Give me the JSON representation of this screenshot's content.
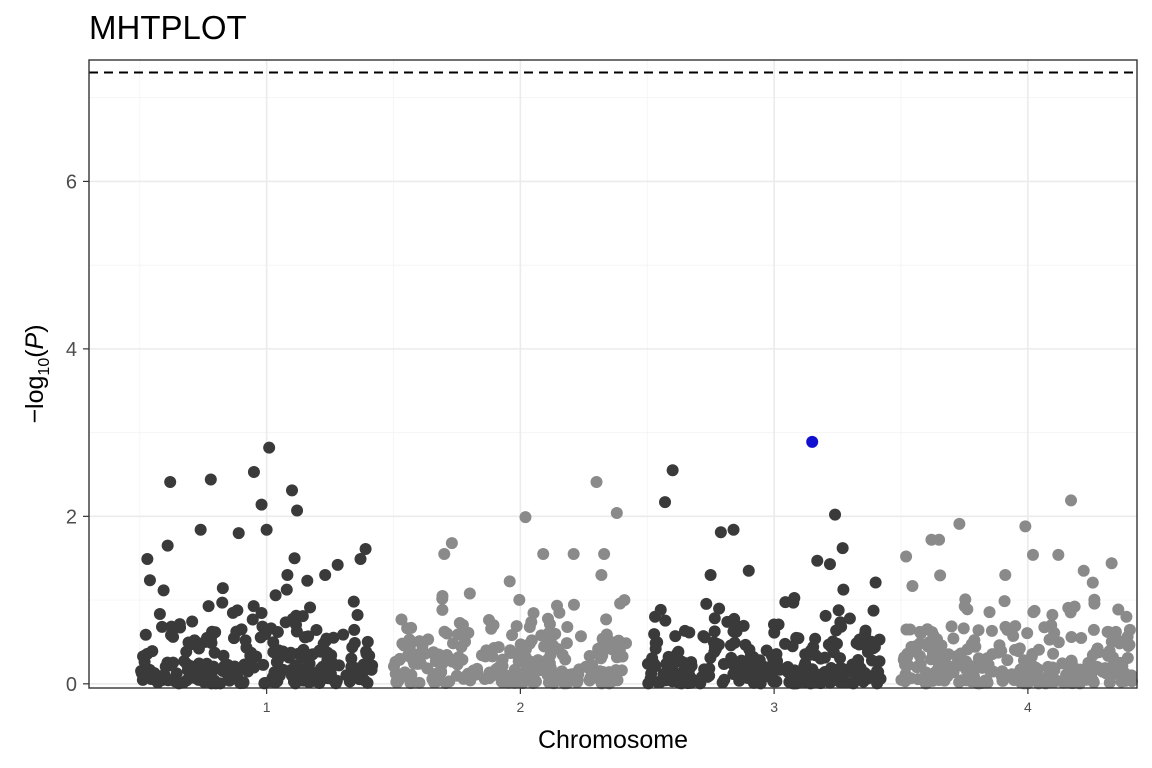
{
  "chart_data": {
    "type": "scatter",
    "title": "MHTPLOT",
    "xlabel": "Chromosome",
    "ylabel": {
      "prefix": "−log",
      "sub": "10",
      "open": "(",
      "var": "P",
      "close": ")"
    },
    "yticks": [
      0,
      2,
      4,
      6
    ],
    "ylim": [
      -0.05,
      7.45
    ],
    "threshold": 7.3,
    "grid": true,
    "chromosomes": [
      {
        "label": "1",
        "center": 1,
        "start": 0.5,
        "end": 1.42,
        "color": "#3a3a3a"
      },
      {
        "label": "2",
        "center": 2,
        "start": 1.5,
        "end": 2.42,
        "color": "#8a8a8a"
      },
      {
        "label": "3",
        "center": 3,
        "start": 2.5,
        "end": 3.42,
        "color": "#3a3a3a"
      },
      {
        "label": "4",
        "center": 4,
        "start": 3.5,
        "end": 4.42,
        "color": "#8a8a8a"
      }
    ],
    "highlight": {
      "x": 3.15,
      "y": 2.89,
      "color": "#1010d0"
    },
    "notable_points": [
      {
        "x": 1.01,
        "y": 2.82
      },
      {
        "x": 0.95,
        "y": 2.53
      },
      {
        "x": 0.78,
        "y": 2.44
      },
      {
        "x": 0.62,
        "y": 2.41
      },
      {
        "x": 1.1,
        "y": 2.31
      },
      {
        "x": 0.98,
        "y": 2.14
      },
      {
        "x": 1.12,
        "y": 2.07
      },
      {
        "x": 0.74,
        "y": 1.84
      },
      {
        "x": 1.0,
        "y": 1.84
      },
      {
        "x": 0.89,
        "y": 1.8
      },
      {
        "x": 0.61,
        "y": 1.65
      },
      {
        "x": 1.39,
        "y": 1.61
      },
      {
        "x": 0.53,
        "y": 1.49
      },
      {
        "x": 1.11,
        "y": 1.5
      },
      {
        "x": 1.28,
        "y": 1.42
      },
      {
        "x": 1.37,
        "y": 1.49
      },
      {
        "x": 2.3,
        "y": 2.41
      },
      {
        "x": 2.38,
        "y": 2.04
      },
      {
        "x": 2.02,
        "y": 1.99
      },
      {
        "x": 1.73,
        "y": 1.68
      },
      {
        "x": 2.21,
        "y": 1.55
      },
      {
        "x": 2.09,
        "y": 1.55
      },
      {
        "x": 1.7,
        "y": 1.55
      },
      {
        "x": 2.33,
        "y": 1.55
      },
      {
        "x": 2.6,
        "y": 2.55
      },
      {
        "x": 2.57,
        "y": 2.17
      },
      {
        "x": 3.24,
        "y": 2.02
      },
      {
        "x": 2.84,
        "y": 1.84
      },
      {
        "x": 2.79,
        "y": 1.81
      },
      {
        "x": 3.27,
        "y": 1.62
      },
      {
        "x": 3.17,
        "y": 1.47
      },
      {
        "x": 3.22,
        "y": 1.43
      },
      {
        "x": 3.4,
        "y": 1.21
      },
      {
        "x": 2.9,
        "y": 1.35
      },
      {
        "x": 4.17,
        "y": 2.19
      },
      {
        "x": 3.73,
        "y": 1.91
      },
      {
        "x": 3.99,
        "y": 1.88
      },
      {
        "x": 3.65,
        "y": 1.72
      },
      {
        "x": 3.62,
        "y": 1.72
      },
      {
        "x": 3.52,
        "y": 1.52
      },
      {
        "x": 4.02,
        "y": 1.54
      },
      {
        "x": 4.12,
        "y": 1.54
      },
      {
        "x": 4.33,
        "y": 1.44
      },
      {
        "x": 4.22,
        "y": 1.35
      }
    ],
    "bulk_points_per_chromosome": 250
  }
}
